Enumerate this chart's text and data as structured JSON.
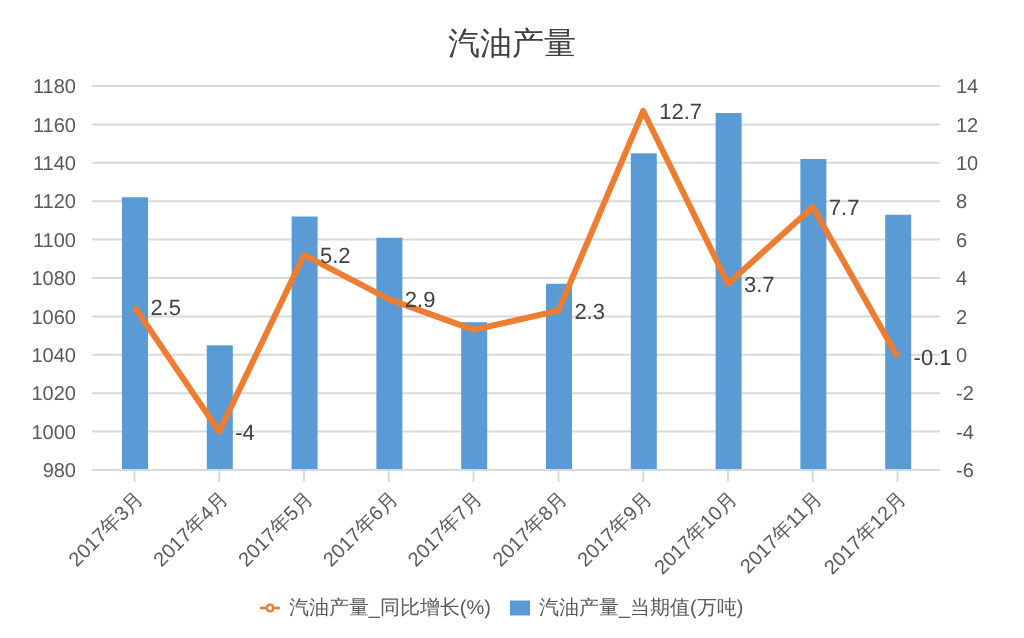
{
  "chart_data": {
    "type": "bar",
    "title": "汽油产量",
    "categories": [
      "2017年3月",
      "2017年4月",
      "2017年5月",
      "2017年6月",
      "2017年7月",
      "2017年8月",
      "2017年9月",
      "2017年10月",
      "2017年11月",
      "2017年12月"
    ],
    "series": [
      {
        "name": "汽油产量_当期值(万吨)",
        "color": "#5b9bd5",
        "values": [
          1122,
          1045,
          1112,
          1101,
          1057,
          1077,
          1145,
          1166,
          1142,
          1113
        ]
      },
      {
        "name": "汽油产量_同比增长(%)",
        "type": "line",
        "axis": "y2",
        "color": "#ed7d31",
        "values": [
          2.5,
          -4,
          5.2,
          2.9,
          1.3,
          2.3,
          12.7,
          3.7,
          7.7,
          -0.1
        ],
        "value_labels": [
          "2.5",
          "-4",
          "5.2",
          "2.9",
          null,
          "2.3",
          "12.7",
          "3.7",
          "7.7",
          "-0.1"
        ]
      }
    ],
    "ylim": [
      980,
      1180
    ],
    "yticks": [
      980,
      1000,
      1020,
      1040,
      1060,
      1080,
      1100,
      1120,
      1140,
      1160,
      1180
    ],
    "y2lim": [
      -6,
      14
    ],
    "y2ticks": [
      -6,
      -4,
      -2,
      0,
      2,
      4,
      6,
      8,
      10,
      12,
      14
    ],
    "grid": "y",
    "legend": "bottom",
    "marker": "none"
  }
}
